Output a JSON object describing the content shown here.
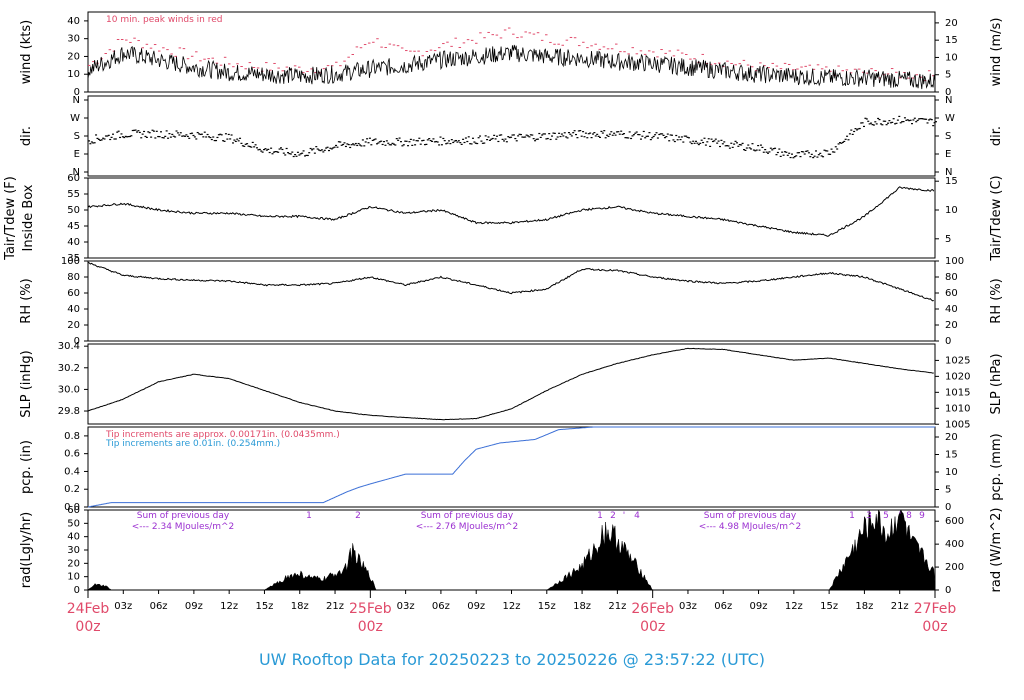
{
  "title": "UW Rooftop Data for 20250223  to  20250226 @ 23:57:22  (UTC)",
  "colors": {
    "accent_red": "#e04a6a",
    "accent_blue": "#2a9ad6",
    "pcp_line": "#3b6fd6",
    "purple": "#9b30d0"
  },
  "x_axis": {
    "days": [
      {
        "label": "24Feb",
        "sub": "00z"
      },
      {
        "label": "25Feb",
        "sub": "00z"
      },
      {
        "label": "26Feb",
        "sub": "00z"
      },
      {
        "label": "27Feb",
        "sub": "00z"
      }
    ],
    "hours": [
      "03z",
      "06z",
      "09z",
      "12z",
      "15z",
      "18z",
      "21z"
    ]
  },
  "chart_data": [
    {
      "id": "wind",
      "type": "line",
      "ylabel": "wind (kts)",
      "ylabel_right": "wind (m/s)",
      "left_ticks": [
        "0",
        "10",
        "20",
        "30",
        "40"
      ],
      "right_ticks": [
        "0",
        "5",
        "10",
        "15",
        "20"
      ],
      "annotation": "10 min. peak winds in red",
      "ylim": [
        0,
        45
      ],
      "series": {
        "hours": [
          0,
          3,
          6,
          9,
          12,
          15,
          18,
          21,
          24,
          27,
          30,
          33,
          36,
          39,
          42,
          45,
          48,
          51,
          54,
          57,
          60,
          63,
          66,
          69,
          72
        ],
        "mean": [
          12,
          22,
          18,
          14,
          11,
          10,
          9,
          10,
          13,
          15,
          18,
          20,
          22,
          20,
          19,
          17,
          16,
          14,
          12,
          10,
          9,
          8,
          8,
          7,
          6
        ],
        "peak": [
          15,
          30,
          25,
          20,
          16,
          14,
          13,
          14,
          30,
          21,
          26,
          30,
          34,
          30,
          28,
          25,
          23,
          20,
          17,
          14,
          13,
          12,
          11,
          10,
          9
        ]
      }
    },
    {
      "id": "dir",
      "type": "scatter",
      "ylabel": "dir.",
      "ylabel_right": "dir.",
      "left_ticks": [
        "N",
        "E",
        "S",
        "W",
        "N"
      ],
      "right_ticks": [
        "N",
        "E",
        "S",
        "W",
        "N"
      ],
      "series": {
        "hours": [
          0,
          3,
          6,
          9,
          12,
          15,
          18,
          21,
          24,
          27,
          30,
          33,
          36,
          39,
          42,
          45,
          48,
          51,
          54,
          57,
          60,
          63,
          66,
          69,
          72
        ],
        "deg": [
          160,
          190,
          190,
          185,
          170,
          110,
          90,
          130,
          150,
          150,
          155,
          160,
          170,
          180,
          190,
          190,
          180,
          160,
          140,
          120,
          80,
          100,
          250,
          260,
          250
        ]
      }
    },
    {
      "id": "temp",
      "type": "line",
      "ylabel": "Tair/Tdew (F)",
      "ylabel2": "Inside Box",
      "ylabel_right": "Tair/Tdew (C)",
      "left_ticks": [
        "35",
        "40",
        "45",
        "50",
        "55",
        "60"
      ],
      "right_ticks": [
        "5",
        "10",
        "15"
      ],
      "ylim": [
        35,
        60
      ],
      "series": {
        "hours": [
          0,
          3,
          6,
          9,
          12,
          15,
          18,
          21,
          24,
          27,
          30,
          33,
          36,
          39,
          42,
          45,
          48,
          51,
          54,
          57,
          60,
          63,
          66,
          69,
          72
        ],
        "tair": [
          51,
          52,
          50,
          49,
          49,
          48,
          48,
          47,
          51,
          49,
          50,
          46,
          46,
          47,
          50,
          51,
          49,
          48,
          47,
          45,
          43,
          42,
          48,
          57,
          56
        ]
      }
    },
    {
      "id": "rh",
      "type": "line",
      "ylabel": "RH (%)",
      "ylabel_right": "RH (%)",
      "left_ticks": [
        "0",
        "20",
        "40",
        "60",
        "80",
        "100"
      ],
      "right_ticks": [
        "0",
        "20",
        "40",
        "60",
        "80",
        "100"
      ],
      "ylim": [
        0,
        100
      ],
      "series": {
        "hours": [
          0,
          3,
          6,
          9,
          12,
          15,
          18,
          21,
          24,
          27,
          30,
          33,
          36,
          39,
          42,
          45,
          48,
          51,
          54,
          57,
          60,
          63,
          66,
          69,
          72
        ],
        "rh": [
          98,
          82,
          78,
          76,
          75,
          70,
          70,
          72,
          80,
          70,
          80,
          70,
          60,
          65,
          90,
          88,
          80,
          75,
          72,
          75,
          80,
          85,
          80,
          65,
          50
        ]
      }
    },
    {
      "id": "slp",
      "type": "line",
      "ylabel": "SLP (inHg)",
      "ylabel_right": "SLP (hPa)",
      "left_ticks": [
        "29.8",
        "30.0",
        "30.2",
        "30.4"
      ],
      "right_ticks": [
        "1005",
        "1010",
        "1015",
        "1020",
        "1025"
      ],
      "ylim": [
        29.68,
        30.42
      ],
      "series": {
        "hours": [
          0,
          3,
          6,
          9,
          12,
          15,
          18,
          21,
          24,
          27,
          30,
          33,
          36,
          39,
          42,
          45,
          48,
          51,
          54,
          57,
          60,
          63,
          66,
          69,
          72
        ],
        "slp": [
          29.8,
          29.91,
          30.07,
          30.14,
          30.1,
          29.99,
          29.88,
          29.8,
          29.76,
          29.74,
          29.72,
          29.73,
          29.82,
          29.99,
          30.14,
          30.24,
          30.32,
          30.38,
          30.37,
          30.32,
          30.27,
          30.29,
          30.24,
          30.19,
          30.15
        ]
      }
    },
    {
      "id": "pcp",
      "type": "line",
      "ylabel": "pcp. (in)",
      "ylabel_right": "pcp. (mm)",
      "left_ticks": [
        "0.0",
        "0.2",
        "0.4",
        "0.6",
        "0.8"
      ],
      "right_ticks": [
        "0",
        "5",
        "10",
        "15",
        "20"
      ],
      "ylim": [
        0,
        0.9
      ],
      "notes": [
        "Tip increments are approx. 0.00171in. (0.0435mm.)",
        "Tip increments are 0.01in. (0.254mm.)"
      ],
      "series": {
        "hours": [
          0,
          2,
          20,
          21,
          22,
          23,
          24,
          27,
          31,
          32,
          33,
          35,
          38,
          40,
          42,
          43,
          48,
          72
        ],
        "pcp": [
          0,
          0.05,
          0.05,
          0.11,
          0.17,
          0.22,
          0.26,
          0.37,
          0.37,
          0.52,
          0.65,
          0.72,
          0.76,
          0.87,
          0.89,
          0.9,
          0.9,
          0.9
        ]
      }
    },
    {
      "id": "rad",
      "type": "area",
      "ylabel": "rad(Lgly/hr)",
      "ylabel_right": "rad (W/m^2)",
      "left_ticks": [
        "0",
        "10",
        "20",
        "30",
        "40",
        "50",
        "60"
      ],
      "right_ticks": [
        "0",
        "200",
        "400",
        "600"
      ],
      "ylim": [
        0,
        60
      ],
      "sum_label": "Sum of previous day",
      "sums": [
        "<--- 2.34 MJoules/m^2",
        "<--- 2.76 MJoules/m^2",
        "<--- 4.98 MJoules/m^2"
      ],
      "markers": [
        "1",
        "2",
        "1",
        "2",
        "'",
        "4",
        "1",
        "3",
        "5",
        "8",
        "9",
        "'"
      ],
      "series": {
        "hours": [
          0,
          0.5,
          1.5,
          2,
          15,
          16,
          17,
          18,
          19,
          20,
          21,
          22,
          22.5,
          23,
          24,
          24.5,
          39,
          40,
          41,
          42,
          43,
          44,
          45,
          46,
          47,
          48,
          63,
          64,
          65,
          66,
          67,
          68,
          69,
          70,
          71,
          72
        ],
        "rad": [
          0,
          4,
          3,
          0,
          0,
          5,
          10,
          12,
          9,
          8,
          12,
          18,
          30,
          22,
          10,
          0,
          0,
          6,
          12,
          18,
          30,
          45,
          38,
          25,
          14,
          0,
          0,
          15,
          30,
          45,
          55,
          40,
          60,
          35,
          25,
          12
        ]
      }
    }
  ]
}
